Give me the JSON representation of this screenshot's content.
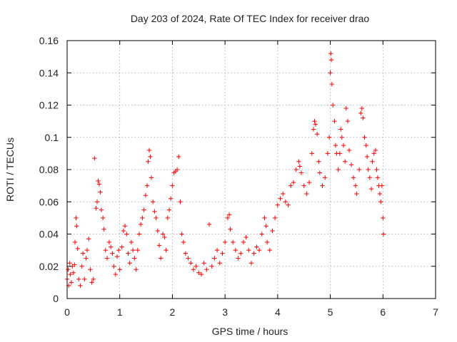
{
  "chart_data": {
    "type": "scatter",
    "title": "Day 203 of 2024, Rate Of TEC Index for receiver drao",
    "xlabel": "GPS time / hours",
    "ylabel": "ROTI / TECUs",
    "xlim": [
      0,
      7
    ],
    "ylim": [
      0,
      0.16
    ],
    "x_ticks": [
      "0",
      "1",
      "2",
      "3",
      "4",
      "5",
      "6",
      "7"
    ],
    "y_ticks": [
      "0",
      "0.02",
      "0.04",
      "0.06",
      "0.08",
      "0.1",
      "0.12",
      "0.14",
      "0.16"
    ],
    "grid": true,
    "marker": "plus",
    "color": "#ff0000",
    "series": [
      {
        "points": [
          [
            0.0,
            0.012
          ],
          [
            0.02,
            0.018
          ],
          [
            0.03,
            0.008
          ],
          [
            0.05,
            0.022
          ],
          [
            0.06,
            0.015
          ],
          [
            0.08,
            0.01
          ],
          [
            0.1,
            0.02
          ],
          [
            0.12,
            0.016
          ],
          [
            0.14,
            0.021
          ],
          [
            0.15,
            0.035
          ],
          [
            0.17,
            0.05
          ],
          [
            0.18,
            0.045
          ],
          [
            0.2,
            0.031
          ],
          [
            0.22,
            0.012
          ],
          [
            0.25,
            0.008
          ],
          [
            0.28,
            0.02
          ],
          [
            0.3,
            0.028
          ],
          [
            0.33,
            0.012
          ],
          [
            0.36,
            0.025
          ],
          [
            0.38,
            0.03
          ],
          [
            0.41,
            0.037
          ],
          [
            0.44,
            0.018
          ],
          [
            0.47,
            0.01
          ],
          [
            0.5,
            0.012
          ],
          [
            0.52,
            0.087
          ],
          [
            0.55,
            0.056
          ],
          [
            0.57,
            0.06
          ],
          [
            0.59,
            0.073
          ],
          [
            0.61,
            0.071
          ],
          [
            0.63,
            0.066
          ],
          [
            0.65,
            0.055
          ],
          [
            0.68,
            0.05
          ],
          [
            0.7,
            0.043
          ],
          [
            0.73,
            0.03
          ],
          [
            0.76,
            0.025
          ],
          [
            0.8,
            0.035
          ],
          [
            0.83,
            0.032
          ],
          [
            0.86,
            0.028
          ],
          [
            0.89,
            0.02
          ],
          [
            0.92,
            0.015
          ],
          [
            0.95,
            0.026
          ],
          [
            0.98,
            0.03
          ],
          [
            1.0,
            0.018
          ],
          [
            1.04,
            0.032
          ],
          [
            1.07,
            0.042
          ],
          [
            1.1,
            0.045
          ],
          [
            1.13,
            0.04
          ],
          [
            1.16,
            0.028
          ],
          [
            1.19,
            0.022
          ],
          [
            1.22,
            0.035
          ],
          [
            1.25,
            0.03
          ],
          [
            1.28,
            0.025
          ],
          [
            1.31,
            0.018
          ],
          [
            1.34,
            0.03
          ],
          [
            1.37,
            0.04
          ],
          [
            1.4,
            0.046
          ],
          [
            1.43,
            0.05
          ],
          [
            1.46,
            0.055
          ],
          [
            1.49,
            0.064
          ],
          [
            1.52,
            0.07
          ],
          [
            1.54,
            0.085
          ],
          [
            1.56,
            0.092
          ],
          [
            1.58,
            0.088
          ],
          [
            1.6,
            0.075
          ],
          [
            1.63,
            0.06
          ],
          [
            1.66,
            0.054
          ],
          [
            1.69,
            0.05
          ],
          [
            1.72,
            0.042
          ],
          [
            1.75,
            0.033
          ],
          [
            1.78,
            0.025
          ],
          [
            1.82,
            0.04
          ],
          [
            1.85,
            0.038
          ],
          [
            1.88,
            0.03
          ],
          [
            1.91,
            0.05
          ],
          [
            1.94,
            0.055
          ],
          [
            1.97,
            0.062
          ],
          [
            2.0,
            0.07
          ],
          [
            2.03,
            0.078
          ],
          [
            2.06,
            0.079
          ],
          [
            2.09,
            0.08
          ],
          [
            2.12,
            0.088
          ],
          [
            2.15,
            0.06
          ],
          [
            2.18,
            0.04
          ],
          [
            2.21,
            0.035
          ],
          [
            2.25,
            0.028
          ],
          [
            2.3,
            0.025
          ],
          [
            2.35,
            0.022
          ],
          [
            2.4,
            0.018
          ],
          [
            2.45,
            0.02
          ],
          [
            2.5,
            0.016
          ],
          [
            2.55,
            0.015
          ],
          [
            2.6,
            0.022
          ],
          [
            2.65,
            0.018
          ],
          [
            2.7,
            0.046
          ],
          [
            2.75,
            0.02
          ],
          [
            2.8,
            0.025
          ],
          [
            2.85,
            0.03
          ],
          [
            2.9,
            0.022
          ],
          [
            2.95,
            0.028
          ],
          [
            3.0,
            0.035
          ],
          [
            3.05,
            0.05
          ],
          [
            3.08,
            0.052
          ],
          [
            3.1,
            0.043
          ],
          [
            3.15,
            0.035
          ],
          [
            3.2,
            0.03
          ],
          [
            3.25,
            0.025
          ],
          [
            3.3,
            0.028
          ],
          [
            3.35,
            0.035
          ],
          [
            3.4,
            0.038
          ],
          [
            3.45,
            0.03
          ],
          [
            3.5,
            0.022
          ],
          [
            3.55,
            0.028
          ],
          [
            3.6,
            0.032
          ],
          [
            3.65,
            0.03
          ],
          [
            3.7,
            0.04
          ],
          [
            3.75,
            0.05
          ],
          [
            3.78,
            0.045
          ],
          [
            3.8,
            0.035
          ],
          [
            3.85,
            0.03
          ],
          [
            3.9,
            0.042
          ],
          [
            3.95,
            0.05
          ],
          [
            4.0,
            0.058
          ],
          [
            4.05,
            0.062
          ],
          [
            4.1,
            0.065
          ],
          [
            4.15,
            0.06
          ],
          [
            4.2,
            0.058
          ],
          [
            4.25,
            0.07
          ],
          [
            4.3,
            0.072
          ],
          [
            4.35,
            0.08
          ],
          [
            4.4,
            0.085
          ],
          [
            4.42,
            0.082
          ],
          [
            4.45,
            0.078
          ],
          [
            4.5,
            0.07
          ],
          [
            4.55,
            0.065
          ],
          [
            4.6,
            0.072
          ],
          [
            4.65,
            0.09
          ],
          [
            4.68,
            0.105
          ],
          [
            4.7,
            0.11
          ],
          [
            4.72,
            0.108
          ],
          [
            4.75,
            0.102
          ],
          [
            4.78,
            0.085
          ],
          [
            4.8,
            0.078
          ],
          [
            4.85,
            0.07
          ],
          [
            4.9,
            0.075
          ],
          [
            4.95,
            0.09
          ],
          [
            4.98,
            0.1
          ],
          [
            5.0,
            0.14
          ],
          [
            5.01,
            0.152
          ],
          [
            5.02,
            0.148
          ],
          [
            5.03,
            0.133
          ],
          [
            5.05,
            0.12
          ],
          [
            5.08,
            0.11
          ],
          [
            5.1,
            0.095
          ],
          [
            5.12,
            0.09
          ],
          [
            5.15,
            0.08
          ],
          [
            5.18,
            0.09
          ],
          [
            5.2,
            0.105
          ],
          [
            5.22,
            0.1
          ],
          [
            5.25,
            0.095
          ],
          [
            5.28,
            0.085
          ],
          [
            5.3,
            0.118
          ],
          [
            5.33,
            0.11
          ],
          [
            5.36,
            0.092
          ],
          [
            5.4,
            0.083
          ],
          [
            5.44,
            0.075
          ],
          [
            5.48,
            0.07
          ],
          [
            5.5,
            0.065
          ],
          [
            5.55,
            0.08
          ],
          [
            5.58,
            0.115
          ],
          [
            5.6,
            0.118
          ],
          [
            5.62,
            0.112
          ],
          [
            5.65,
            0.1
          ],
          [
            5.68,
            0.095
          ],
          [
            5.7,
            0.088
          ],
          [
            5.72,
            0.08
          ],
          [
            5.75,
            0.075
          ],
          [
            5.78,
            0.068
          ],
          [
            5.8,
            0.085
          ],
          [
            5.83,
            0.09
          ],
          [
            5.86,
            0.092
          ],
          [
            5.88,
            0.08
          ],
          [
            5.9,
            0.075
          ],
          [
            5.92,
            0.07
          ],
          [
            5.94,
            0.065
          ],
          [
            5.96,
            0.06
          ],
          [
            5.98,
            0.07
          ],
          [
            6.0,
            0.05
          ],
          [
            6.01,
            0.04
          ]
        ]
      }
    ]
  }
}
